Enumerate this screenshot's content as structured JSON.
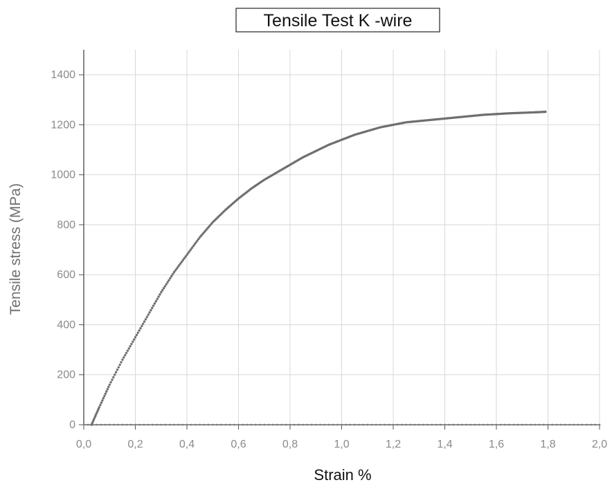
{
  "chart_data": {
    "type": "scatter",
    "title": "Tensile Test K -wire",
    "xlabel": "Strain %",
    "ylabel": "Tensile stress (MPa)",
    "xlim": [
      0.0,
      2.0
    ],
    "ylim": [
      0,
      1500
    ],
    "x_ticks": [
      {
        "value": 0.0,
        "label": "0,0"
      },
      {
        "value": 0.2,
        "label": "0,2"
      },
      {
        "value": 0.4,
        "label": "0,4"
      },
      {
        "value": 0.6,
        "label": "0,6"
      },
      {
        "value": 0.8,
        "label": "0,8"
      },
      {
        "value": 1.0,
        "label": "1,0"
      },
      {
        "value": 1.2,
        "label": "1,2"
      },
      {
        "value": 1.4,
        "label": "1,4"
      },
      {
        "value": 1.6,
        "label": "1,6"
      },
      {
        "value": 1.8,
        "label": "1,8"
      },
      {
        "value": 2.0,
        "label": "2,0"
      }
    ],
    "y_ticks": [
      {
        "value": 0,
        "label": "0"
      },
      {
        "value": 200,
        "label": "200"
      },
      {
        "value": 400,
        "label": "400"
      },
      {
        "value": 600,
        "label": "600"
      },
      {
        "value": 800,
        "label": "800"
      },
      {
        "value": 1000,
        "label": "1000"
      },
      {
        "value": 1200,
        "label": "1200"
      },
      {
        "value": 1400,
        "label": "1400"
      }
    ],
    "grid": true,
    "series": [
      {
        "color": "#6f6f6f",
        "x": [
          0.03,
          0.06,
          0.1,
          0.15,
          0.2,
          0.25,
          0.3,
          0.35,
          0.4,
          0.45,
          0.5,
          0.55,
          0.6,
          0.65,
          0.7,
          0.75,
          0.8,
          0.85,
          0.9,
          0.95,
          1.0,
          1.05,
          1.1,
          1.15,
          1.2,
          1.25,
          1.3,
          1.35,
          1.4,
          1.45,
          1.5,
          1.55,
          1.6,
          1.65,
          1.7,
          1.75,
          1.79
        ],
        "y": [
          0,
          70,
          160,
          260,
          350,
          440,
          530,
          610,
          680,
          750,
          810,
          860,
          905,
          945,
          980,
          1010,
          1040,
          1070,
          1095,
          1120,
          1140,
          1160,
          1175,
          1190,
          1200,
          1210,
          1215,
          1220,
          1225,
          1230,
          1235,
          1240,
          1243,
          1246,
          1248,
          1250,
          1252
        ]
      }
    ],
    "baseline": {
      "color": "#7a7a7a",
      "x": [
        0.0,
        2.0
      ],
      "y": [
        0,
        0
      ]
    }
  }
}
